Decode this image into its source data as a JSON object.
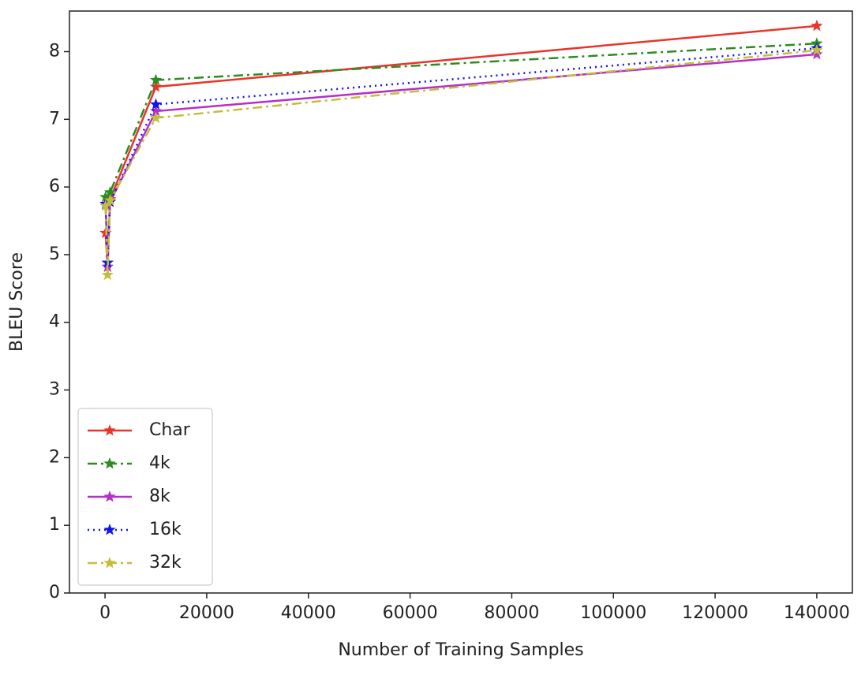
{
  "chart_data": {
    "type": "line",
    "x_label": "Number of Training Samples",
    "y_label": "BLEU Score",
    "x": [
      100,
      500,
      1000,
      10000,
      140000
    ],
    "series": [
      {
        "name": "Char",
        "color": "#e8342a",
        "linestyle": "solid",
        "values": [
          5.32,
          4.82,
          5.82,
          7.48,
          8.38
        ]
      },
      {
        "name": "4k",
        "color": "#2e8b22",
        "linestyle": "dashdot",
        "values": [
          5.85,
          4.88,
          5.92,
          7.58,
          8.12
        ]
      },
      {
        "name": "8k",
        "color": "#b430c8",
        "linestyle": "solid",
        "values": [
          5.75,
          4.82,
          5.78,
          7.12,
          7.96
        ]
      },
      {
        "name": "16k",
        "color": "#1414f0",
        "linestyle": "dotted",
        "values": [
          5.75,
          4.88,
          5.78,
          7.22,
          8.05
        ]
      },
      {
        "name": "32k",
        "color": "#c4bd3c",
        "linestyle": "dashdot",
        "values": [
          5.72,
          4.7,
          5.8,
          7.02,
          8.02
        ]
      }
    ],
    "xlim": [
      -7000,
      147000
    ],
    "ylim": [
      0,
      8.6
    ],
    "xticks": [
      0,
      20000,
      40000,
      60000,
      80000,
      100000,
      120000,
      140000
    ],
    "yticks": [
      0,
      1,
      2,
      3,
      4,
      5,
      6,
      7,
      8
    ],
    "legend": "lower left",
    "grid": false
  }
}
